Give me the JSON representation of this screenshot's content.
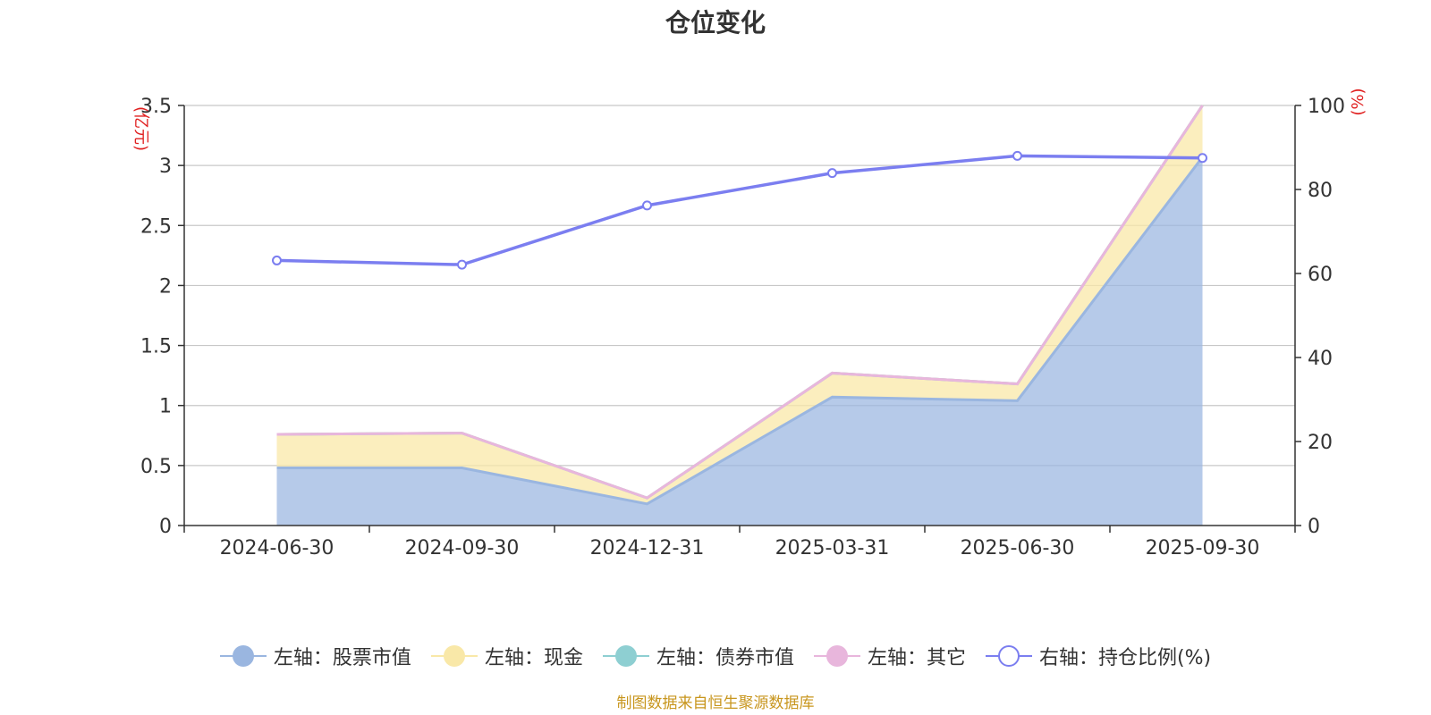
{
  "title": "仓位变化",
  "source_note": "制图数据来自恒生聚源数据库",
  "colors": {
    "stock": "#9ab6e0",
    "cash": "#f9e8a8",
    "bond": "#8ecfd2",
    "other": "#e8b6dc",
    "ratio": "#7b7ef0",
    "unit_label": "#e02020",
    "source_note": "#c8961e"
  },
  "chart_data": {
    "type": "area",
    "categories": [
      "2024-06-30",
      "2024-09-30",
      "2024-12-31",
      "2025-03-31",
      "2025-06-30",
      "2025-09-30"
    ],
    "series": [
      {
        "name": "左轴：股票市值",
        "axis": "left",
        "stack": true,
        "values": [
          0.48,
          0.48,
          0.18,
          1.07,
          1.04,
          3.07
        ]
      },
      {
        "name": "左轴：现金",
        "axis": "left",
        "stack": true,
        "values": [
          0.28,
          0.29,
          0.05,
          0.2,
          0.14,
          0.43
        ]
      },
      {
        "name": "左轴：债券市值",
        "axis": "left",
        "stack": true,
        "values": [
          0,
          0,
          0,
          0,
          0,
          0
        ]
      },
      {
        "name": "左轴：其它",
        "axis": "left",
        "stack": true,
        "values": [
          0,
          0,
          0,
          0,
          0,
          0
        ]
      },
      {
        "name": "右轴：持仓比例(%)",
        "axis": "right",
        "type": "line",
        "values": [
          63.1,
          62.1,
          76.2,
          83.9,
          88.0,
          87.5
        ]
      }
    ],
    "y_left": {
      "label": "(亿元)",
      "min": 0,
      "max": 3.5,
      "ticks": [
        "0",
        "0.5",
        "1",
        "1.5",
        "2",
        "2.5",
        "3",
        "3.5"
      ]
    },
    "y_right": {
      "label": "(%)",
      "min": 0,
      "max": 100,
      "ticks": [
        "0",
        "20",
        "40",
        "60",
        "80",
        "100"
      ]
    },
    "grid": true,
    "legend_position": "bottom"
  }
}
